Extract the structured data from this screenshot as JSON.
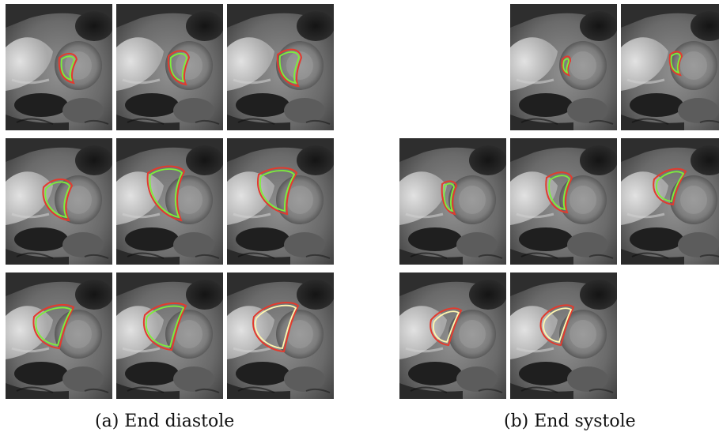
{
  "figure": {
    "panels": [
      {
        "caption": "(a) End diastole",
        "rows": [
          {
            "slices": 3
          },
          {
            "slices": 3
          },
          {
            "slices": 3
          }
        ]
      },
      {
        "caption": "(b) End systole",
        "rows": [
          {
            "slices": 2
          },
          {
            "slices": 3
          },
          {
            "slices": 2
          }
        ]
      }
    ],
    "contour_colors": {
      "ground_truth": "#e23b2e",
      "prediction": "#7df03a",
      "inner": "#fff7b0"
    }
  }
}
